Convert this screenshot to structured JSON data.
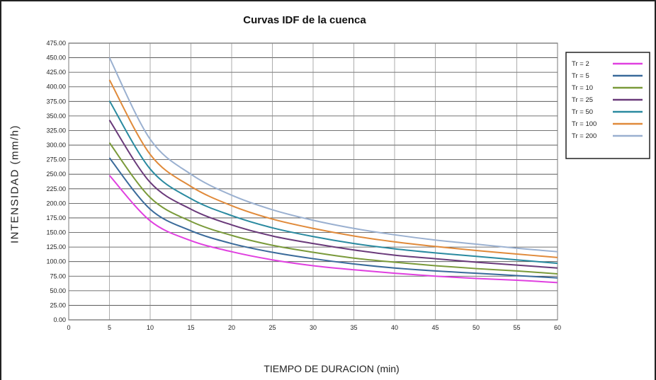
{
  "chart_data": {
    "type": "line",
    "title": "Curvas IDF de la cuenca",
    "xlabel": "TIEMPO DE DURACION (min)",
    "ylabel": "INTENSIDAD (mm/h)",
    "xlim": [
      0,
      60
    ],
    "ylim": [
      0,
      475
    ],
    "x_ticks": [
      0,
      5,
      10,
      15,
      20,
      25,
      30,
      35,
      40,
      45,
      50,
      55,
      60
    ],
    "y_ticks": [
      "0.00",
      "25.00",
      "50.00",
      "75.00",
      "100.00",
      "125.00",
      "150.00",
      "175.00",
      "200.00",
      "225.00",
      "250.00",
      "275.00",
      "300.00",
      "325.00",
      "350.00",
      "375.00",
      "400.00",
      "425.00",
      "450.00",
      "475.00"
    ],
    "grid": true,
    "legend_position": "top-right",
    "x": [
      5,
      10,
      15,
      20,
      25,
      30,
      35,
      40,
      45,
      50,
      55,
      60
    ],
    "series": [
      {
        "name": "Tr = 2",
        "color": "#e040e0",
        "values": [
          248,
          170,
          136,
          117,
          103,
          93,
          86,
          80,
          75,
          71,
          68,
          64
        ]
      },
      {
        "name": "Tr = 5",
        "color": "#3a6a9a",
        "values": [
          278,
          190,
          153,
          131,
          116,
          105,
          96,
          89,
          84,
          80,
          76,
          72
        ]
      },
      {
        "name": "Tr = 10",
        "color": "#7a9a3a",
        "values": [
          304,
          210,
          169,
          145,
          128,
          116,
          106,
          99,
          93,
          88,
          84,
          79
        ]
      },
      {
        "name": "Tr = 25",
        "color": "#6a3a7a",
        "values": [
          343,
          236,
          190,
          163,
          144,
          131,
          120,
          111,
          105,
          99,
          94,
          89
        ]
      },
      {
        "name": "Tr = 50",
        "color": "#2a8aa0",
        "values": [
          376,
          259,
          208,
          179,
          158,
          143,
          131,
          122,
          115,
          109,
          103,
          97
        ]
      },
      {
        "name": "Tr = 100",
        "color": "#e08a3a",
        "values": [
          412,
          284,
          229,
          196,
          173,
          157,
          144,
          134,
          126,
          119,
          113,
          107
        ]
      },
      {
        "name": "Tr = 200",
        "color": "#9ab0d0",
        "values": [
          450,
          310,
          250,
          214,
          189,
          171,
          157,
          146,
          137,
          130,
          123,
          117
        ]
      }
    ]
  }
}
